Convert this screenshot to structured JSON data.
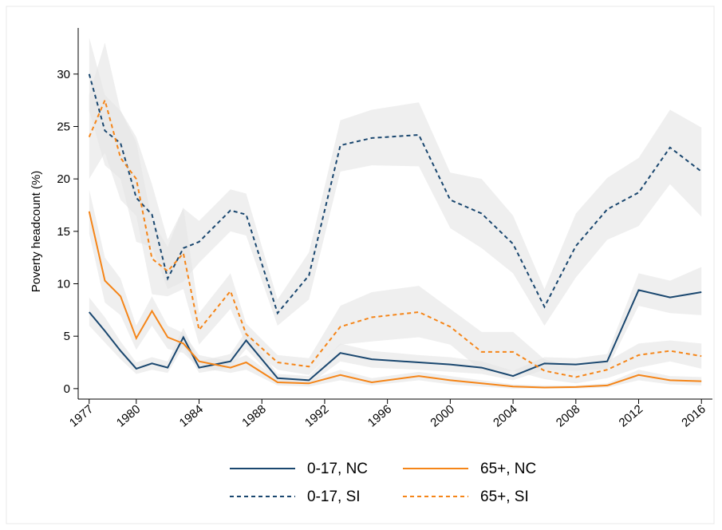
{
  "chart_data": {
    "type": "line",
    "y_label": "Poverty headcount (%)",
    "x": [
      1977,
      1978,
      1979,
      1980,
      1981,
      1982,
      1983,
      1984,
      1986,
      1987,
      1989,
      1991,
      1993,
      1995,
      1998,
      2000,
      2002,
      2004,
      2006,
      2008,
      2010,
      2012,
      2014,
      2016
    ],
    "xlim": [
      1976.3,
      2016.7
    ],
    "xticks": [
      1977,
      1980,
      1984,
      1988,
      1992,
      1996,
      2000,
      2004,
      2008,
      2012,
      2016
    ],
    "ylim": [
      -1,
      34.4
    ],
    "yticks": [
      0,
      5,
      10,
      15,
      20,
      25,
      30
    ],
    "band_color": "#e4e4e4",
    "series": [
      {
        "name": "0-17, NC",
        "color": "#1a476f",
        "dashed": false,
        "values": [
          7.3,
          5.5,
          3.6,
          1.9,
          2.4,
          2.0,
          4.9,
          2.0,
          2.6,
          4.6,
          1.0,
          0.8,
          3.4,
          2.8,
          2.5,
          2.3,
          2.0,
          1.2,
          2.4,
          2.3,
          2.6,
          9.4,
          8.7,
          9.2
        ],
        "upper": [
          8.7,
          6.8,
          4.5,
          2.5,
          3.0,
          2.6,
          5.8,
          2.6,
          3.3,
          5.5,
          1.4,
          1.2,
          4.3,
          3.6,
          3.2,
          3.0,
          2.6,
          1.7,
          3.0,
          2.9,
          3.3,
          11.0,
          10.3,
          11.6
        ],
        "lower": [
          6.0,
          4.4,
          2.8,
          1.4,
          1.8,
          1.5,
          4.0,
          1.5,
          2.0,
          3.8,
          0.6,
          0.4,
          2.6,
          2.0,
          1.8,
          1.6,
          1.4,
          0.8,
          1.8,
          1.7,
          1.9,
          7.9,
          7.2,
          7.0
        ]
      },
      {
        "name": "65+, NC",
        "color": "#f58518",
        "dashed": false,
        "values": [
          16.9,
          10.3,
          8.8,
          4.8,
          7.4,
          4.9,
          4.3,
          2.6,
          2.0,
          2.5,
          0.6,
          0.5,
          1.3,
          0.6,
          1.2,
          0.8,
          0.5,
          0.2,
          0.1,
          0.15,
          0.3,
          1.3,
          0.8,
          0.7
        ],
        "upper": [
          19.0,
          12.5,
          10.5,
          6.0,
          8.8,
          6.0,
          5.3,
          3.2,
          2.6,
          3.2,
          0.9,
          0.8,
          1.8,
          1.0,
          1.6,
          1.2,
          0.8,
          0.4,
          0.3,
          0.3,
          0.5,
          1.8,
          1.2,
          1.1
        ],
        "lower": [
          14.8,
          8.2,
          7.0,
          3.7,
          6.0,
          3.8,
          3.4,
          2.0,
          1.5,
          1.8,
          0.3,
          0.2,
          0.8,
          0.3,
          0.8,
          0.4,
          0.2,
          0.0,
          0.0,
          0.0,
          0.1,
          0.8,
          0.4,
          0.3
        ]
      },
      {
        "name": "0-17, SI",
        "color": "#1a476f",
        "dashed": true,
        "values": [
          30.0,
          24.6,
          23.4,
          18.2,
          16.6,
          10.5,
          13.4,
          14.0,
          17.0,
          16.6,
          7.2,
          10.8,
          23.2,
          23.9,
          24.2,
          18.0,
          16.7,
          13.8,
          7.8,
          13.6,
          17.1,
          18.7,
          23.0,
          20.7
        ],
        "upper": [
          33.5,
          28.0,
          26.5,
          24.0,
          19.5,
          14.2,
          17.2,
          16.0,
          19.0,
          18.6,
          8.5,
          13.0,
          25.6,
          26.6,
          27.3,
          20.6,
          20.0,
          16.5,
          9.5,
          16.7,
          20.1,
          22.0,
          26.6,
          24.9
        ],
        "lower": [
          26.5,
          21.3,
          20.0,
          14.0,
          13.5,
          9.5,
          10.2,
          12.0,
          15.0,
          14.6,
          6.0,
          8.5,
          20.7,
          21.3,
          21.2,
          15.3,
          13.4,
          11.0,
          6.0,
          10.6,
          14.2,
          15.5,
          19.5,
          16.4
        ]
      },
      {
        "name": "65+, SI",
        "color": "#f58518",
        "dashed": true,
        "values": [
          24.0,
          27.5,
          22.0,
          20.0,
          12.4,
          11.2,
          12.9,
          5.6,
          9.3,
          5.2,
          2.5,
          2.1,
          5.9,
          6.8,
          7.3,
          5.9,
          3.5,
          3.5,
          1.7,
          1.1,
          1.8,
          3.2,
          3.6,
          3.1
        ],
        "upper": [
          28.0,
          33.0,
          26.5,
          23.5,
          16.0,
          13.5,
          17.3,
          7.2,
          11.0,
          6.2,
          3.2,
          2.9,
          7.9,
          9.2,
          9.8,
          7.6,
          5.4,
          5.4,
          2.8,
          2.0,
          2.6,
          4.3,
          4.6,
          4.3
        ],
        "lower": [
          20.0,
          22.5,
          18.0,
          16.5,
          9.0,
          8.8,
          9.5,
          4.2,
          7.6,
          4.2,
          1.8,
          1.3,
          4.2,
          4.5,
          4.9,
          4.2,
          1.7,
          1.7,
          0.9,
          0.5,
          1.0,
          2.0,
          2.6,
          1.9
        ]
      }
    ]
  }
}
